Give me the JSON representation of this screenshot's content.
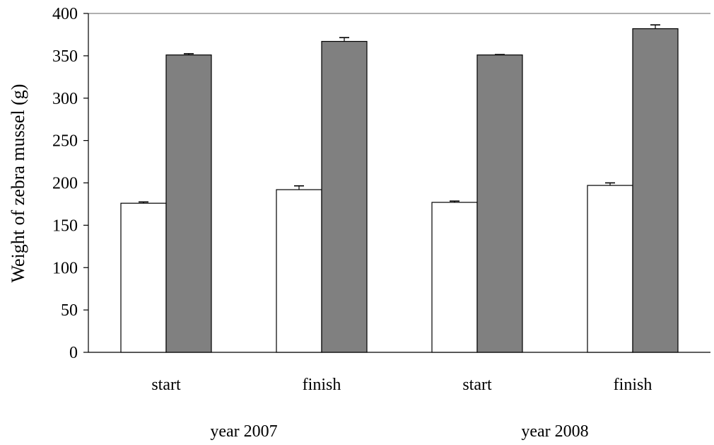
{
  "chart_data": {
    "type": "bar",
    "title": "",
    "xlabel": "",
    "ylabel": "Weight of zebra mussel (g)",
    "ylim": [
      0,
      400
    ],
    "yticks": [
      0,
      50,
      100,
      150,
      200,
      250,
      300,
      350,
      400
    ],
    "grid": false,
    "categories": [
      "start",
      "finish",
      "start",
      "finish"
    ],
    "groups": [
      {
        "label": "year 2007",
        "categories": [
          "start",
          "finish"
        ]
      },
      {
        "label": "year 2008",
        "categories": [
          "start",
          "finish"
        ]
      }
    ],
    "series": [
      {
        "color": "#ffffff",
        "values": [
          176,
          192,
          177,
          197
        ],
        "errors": [
          1.5,
          4.5,
          1.5,
          3
        ]
      },
      {
        "color": "#808080",
        "values": [
          351,
          367,
          351,
          382
        ],
        "errors": [
          1.5,
          4.5,
          0.5,
          4.5
        ]
      }
    ]
  }
}
